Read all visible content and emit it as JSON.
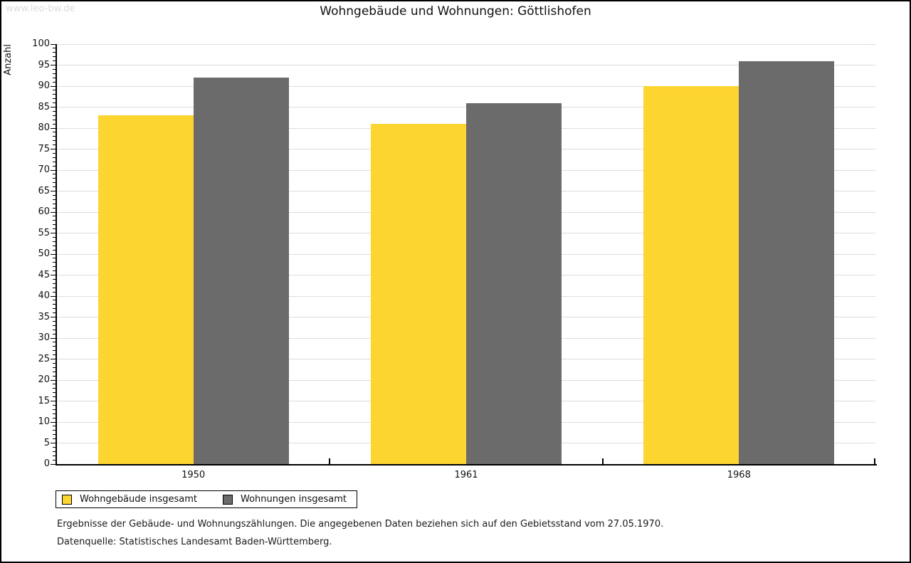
{
  "page": {
    "watermark": "www.leo-bw.de"
  },
  "chart_data": {
    "type": "bar",
    "title": "Wohngebäude und Wohnungen: Göttlishofen",
    "ylabel": "Anzahl",
    "xlabel": "",
    "categories": [
      "1950",
      "1961",
      "1968"
    ],
    "series": [
      {
        "name": "Wohngebäude insgesamt",
        "color": "#FDD530",
        "values": [
          83,
          81,
          90
        ]
      },
      {
        "name": "Wohnungen insgesamt",
        "color": "#6B6B6B",
        "values": [
          92,
          86,
          96
        ]
      }
    ],
    "ylim": [
      0,
      100
    ],
    "ytick_step": 5,
    "minor_tick_step": 1,
    "grid": true,
    "gridline_color": "#DDDDDD",
    "axis_color": "#000000",
    "legend_position": "bottom-left"
  },
  "notes": {
    "line1": "Ergebnisse der Gebäude- und Wohnungszählungen. Die angegebenen Daten beziehen sich auf den Gebietsstand vom 27.05.1970.",
    "line2": "Datenquelle: Statistisches Landesamt Baden-Württemberg."
  }
}
